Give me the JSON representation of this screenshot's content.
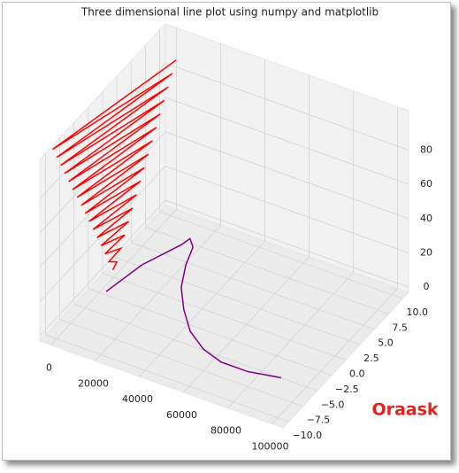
{
  "chart_data": {
    "type": "line3d",
    "title": "Three dimensional line plot using numpy and matplotlib",
    "watermark": "Oraask",
    "xlim": [
      -5000,
      105000
    ],
    "ylim": [
      -11,
      11
    ],
    "zlim": [
      -3,
      103
    ],
    "xticks": [
      0,
      20000,
      40000,
      60000,
      80000,
      100000
    ],
    "yticks": [
      {
        "value": -10,
        "label": "−10.0"
      },
      {
        "value": -7.5,
        "label": "−7.5"
      },
      {
        "value": -5,
        "label": "−5.0"
      },
      {
        "value": -2.5,
        "label": "−2.5"
      },
      {
        "value": 0,
        "label": "0.0"
      },
      {
        "value": 2.5,
        "label": "2.5"
      },
      {
        "value": 5,
        "label": "5.0"
      },
      {
        "value": 7.5,
        "label": "7.5"
      },
      {
        "value": 10,
        "label": "10.0"
      }
    ],
    "zticks": [
      0,
      20,
      40,
      60,
      80
    ],
    "grid": true,
    "series": [
      {
        "color": "#ff0000",
        "x": [
          -100,
          400,
          -600,
          900,
          -1100,
          1400,
          -1600,
          1900,
          -2100,
          2400,
          -2600,
          2900,
          -3100,
          3400,
          -3600,
          3900,
          -4100,
          4400,
          -4600,
          4900,
          -5200,
          5400,
          -5700,
          5900,
          -6200,
          6400,
          -6700,
          6900,
          -7200,
          7400,
          -7700,
          7900
        ],
        "y": [
          -0.1,
          0.4,
          -0.6,
          0.9,
          -1.1,
          1.4,
          -1.6,
          1.9,
          -2.1,
          2.4,
          -2.6,
          2.9,
          -3.1,
          3.4,
          -3.6,
          3.9,
          -4.1,
          4.4,
          -4.6,
          4.9,
          -5.2,
          5.4,
          -5.7,
          5.9,
          -6.2,
          6.4,
          -6.7,
          6.9,
          -7.2,
          7.4,
          -7.7,
          7.9
        ],
        "z": [
          1.6,
          4.7,
          7.9,
          11.0,
          14.1,
          17.3,
          20.4,
          23.6,
          26.7,
          29.8,
          33.0,
          36.1,
          39.3,
          42.4,
          45.6,
          48.7,
          51.8,
          55.0,
          58.1,
          61.3,
          64.4,
          67.5,
          70.7,
          73.8,
          77.0,
          80.1,
          83.3,
          86.4,
          89.5,
          92.7,
          95.8,
          99.0
        ]
      },
      {
        "color": "#800080",
        "x": [
          3600,
          7300,
          14400,
          15400,
          19100,
          22300,
          27700,
          35600,
          44700,
          54800,
          65000,
          76800,
          90200
        ],
        "y": [
          -2.7,
          2.1,
          6.3,
          7.4,
          6.5,
          4.0,
          1.1,
          -1.5,
          -3.9,
          -5.5,
          -6.3,
          -6.3,
          -5.6
        ],
        "z": [
          0,
          0,
          0,
          0,
          0,
          0,
          0,
          0,
          0,
          0,
          0,
          0,
          0
        ]
      }
    ]
  }
}
